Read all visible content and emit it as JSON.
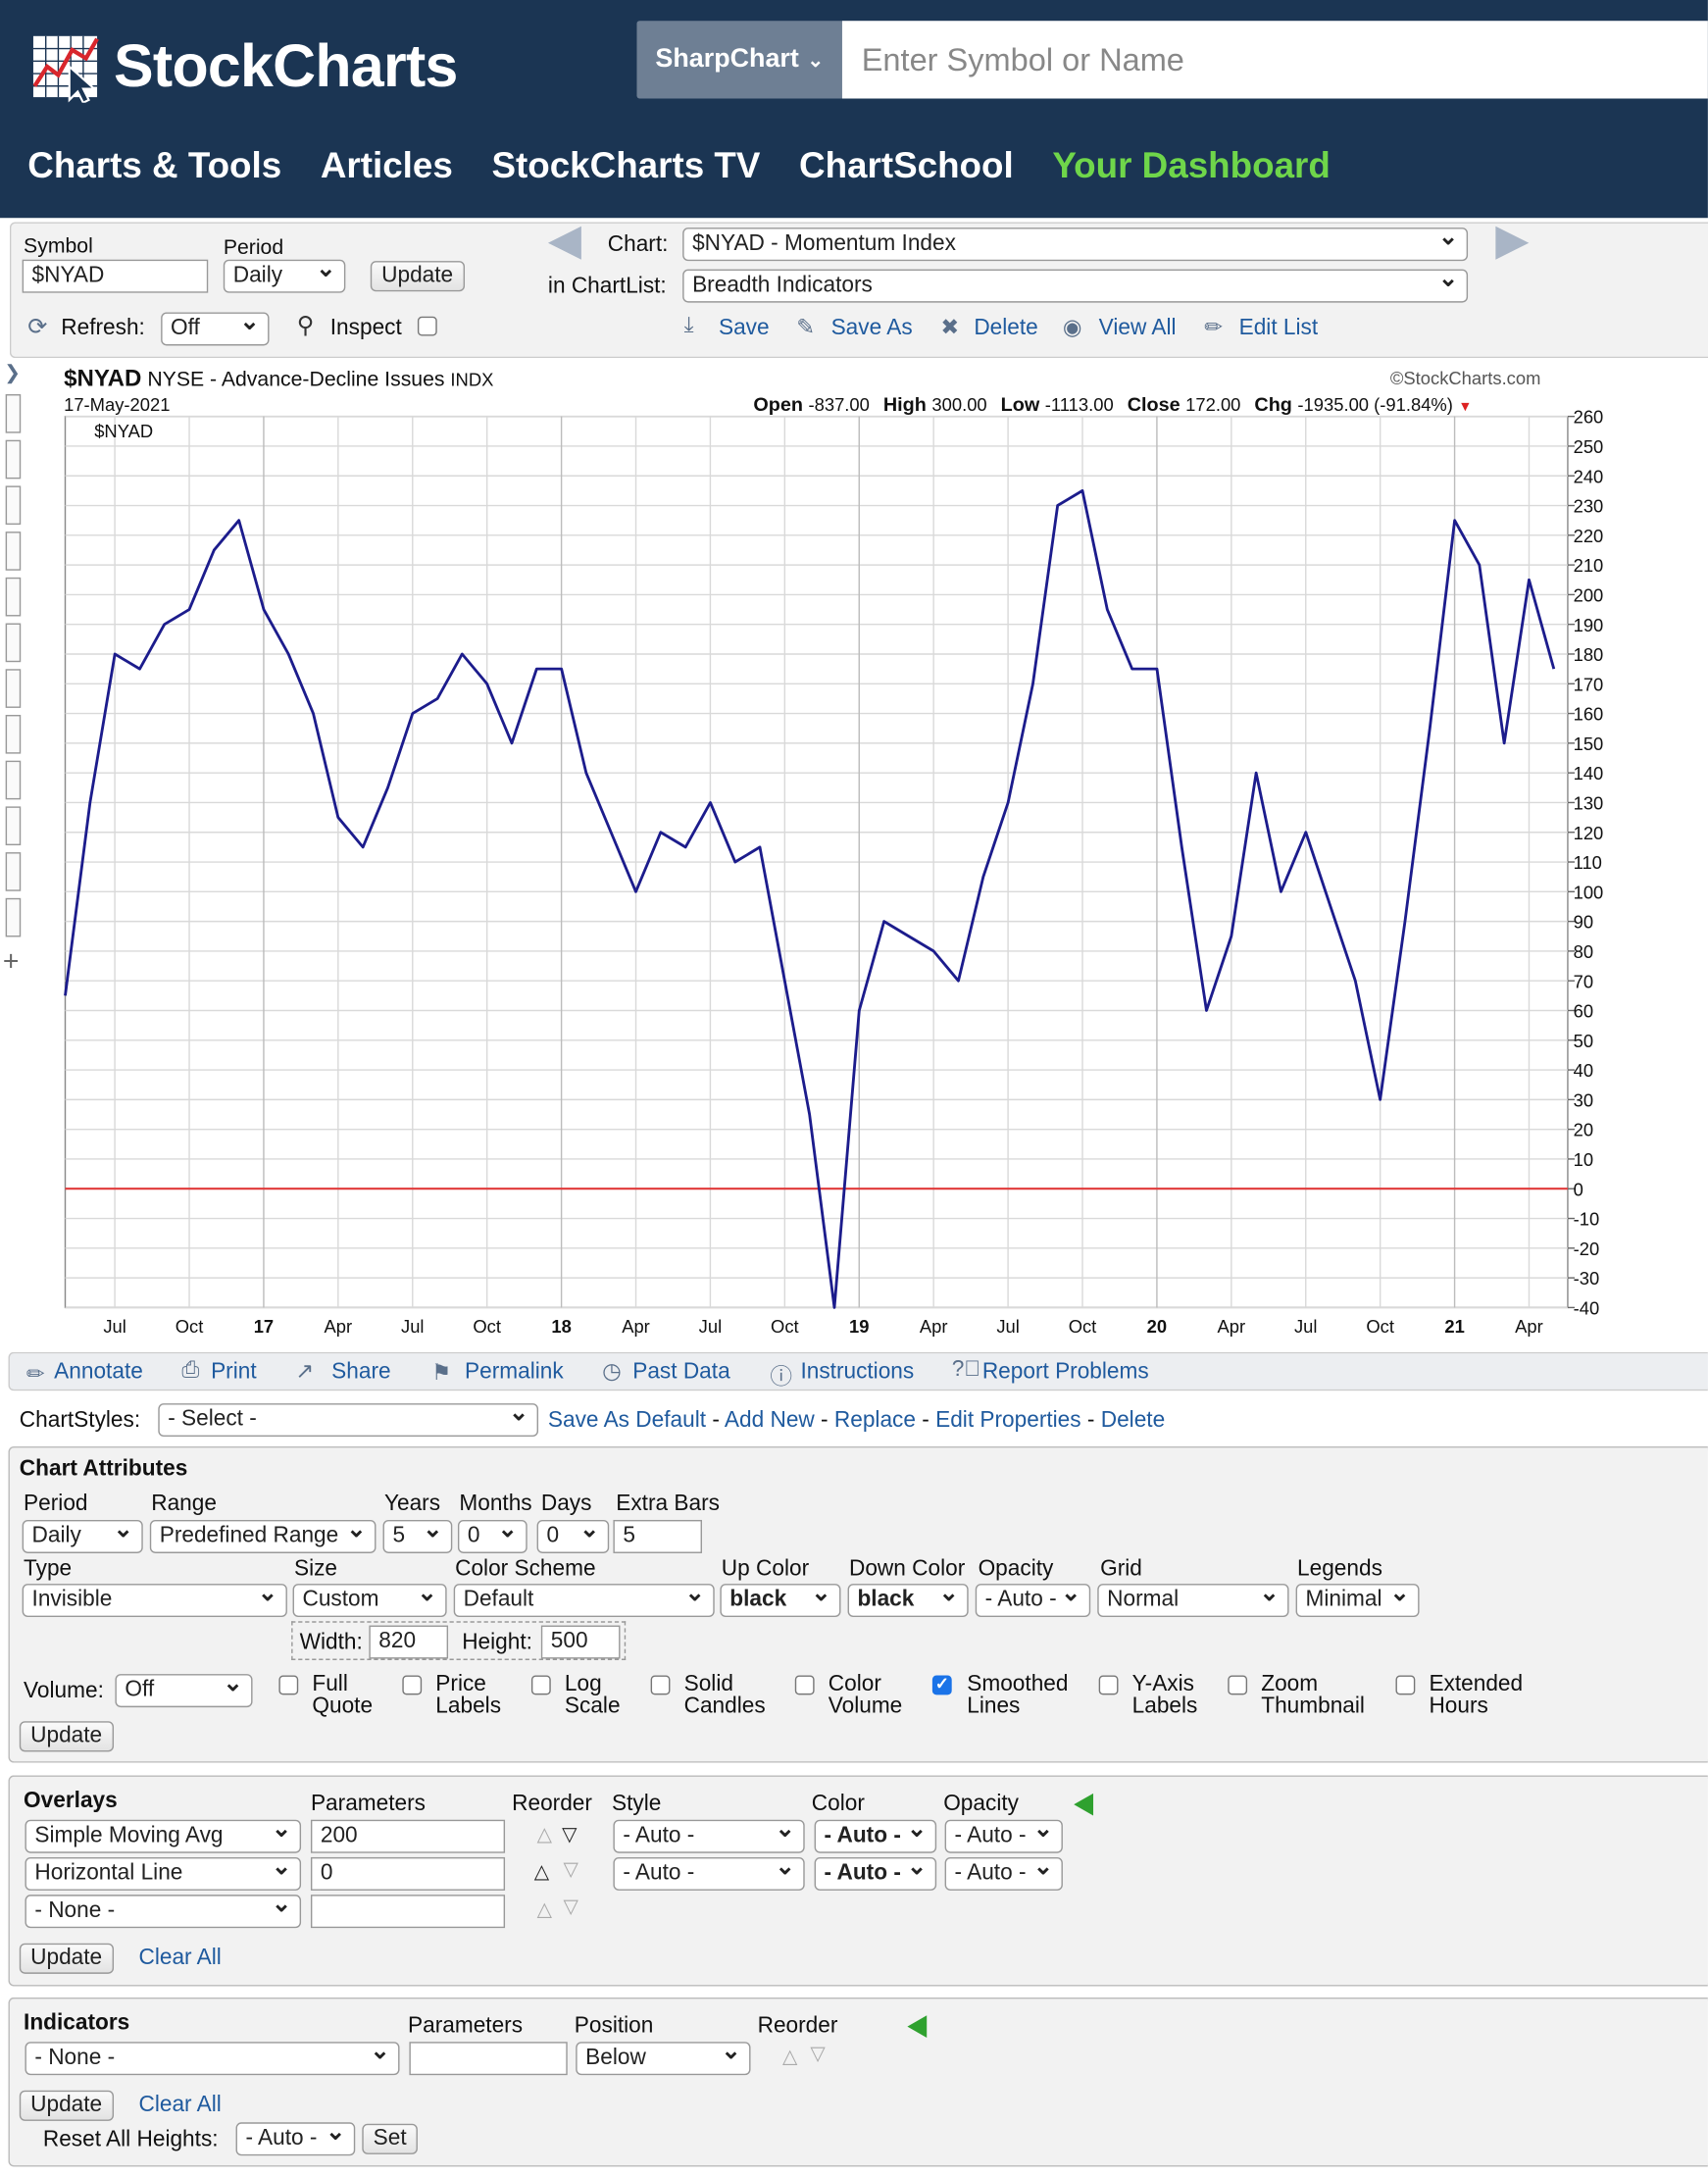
{
  "header": {
    "logo_text": "StockCharts",
    "sharpchart_label": "SharpChart",
    "search_placeholder": "Enter Symbol or Name",
    "nav": [
      "Charts & Tools",
      "Articles",
      "StockCharts TV",
      "ChartSchool",
      "Your Dashboard"
    ]
  },
  "controls": {
    "symbol_label": "Symbol",
    "symbol_value": "$NYAD",
    "period_label": "Period",
    "period_value": "Daily",
    "update_label": "Update",
    "refresh_label": "Refresh:",
    "refresh_value": "Off",
    "inspect_label": "Inspect",
    "chart_label": "Chart:",
    "chart_value": "$NYAD - Momentum Index",
    "chartlist_label": "in ChartList:",
    "chartlist_value": "Breadth Indicators",
    "actions": [
      "Save",
      "Save As",
      "Delete",
      "View All",
      "Edit List"
    ]
  },
  "chart": {
    "symbol": "$NYAD",
    "description": "NYSE - Advance-Decline Issues",
    "exchange": "INDX",
    "date": "17-May-2021",
    "watermark": "©StockCharts.com",
    "panel_label": "$NYAD",
    "ohlc": {
      "open_label": "Open",
      "open": "-837.00",
      "high_label": "High",
      "high": "300.00",
      "low_label": "Low",
      "low": "-1113.00",
      "close_label": "Close",
      "close": "172.00",
      "chg_label": "Chg",
      "chg": "-1935.00 (-91.84%)"
    }
  },
  "chart_data": {
    "type": "line",
    "title": "$NYAD NYSE - Advance-Decline Issues INDX",
    "xlabel": "",
    "ylabel": "",
    "ylim": [
      -40,
      260
    ],
    "y_ticks": [
      260,
      250,
      240,
      230,
      220,
      210,
      200,
      190,
      180,
      170,
      160,
      150,
      140,
      130,
      120,
      110,
      100,
      90,
      80,
      70,
      60,
      50,
      40,
      30,
      20,
      10,
      0,
      -10,
      -20,
      -30,
      -40
    ],
    "x_ticks": [
      "Jul",
      "Oct",
      "17",
      "Apr",
      "Jul",
      "Oct",
      "18",
      "Apr",
      "Jul",
      "Oct",
      "19",
      "Apr",
      "Jul",
      "Oct",
      "20",
      "Apr",
      "Jul",
      "Oct",
      "21",
      "Apr"
    ],
    "grid": true,
    "reference_line": {
      "y": 0,
      "color": "#e03a3a"
    },
    "series": [
      {
        "color": "#1c1c8c",
        "x": [
          "2016-05",
          "2016-06",
          "2016-07",
          "2016-08",
          "2016-09",
          "2016-10",
          "2016-11",
          "2016-12",
          "2017-01",
          "2017-02",
          "2017-03",
          "2017-04",
          "2017-05",
          "2017-06",
          "2017-07",
          "2017-08",
          "2017-09",
          "2017-10",
          "2017-11",
          "2017-12",
          "2018-01",
          "2018-02",
          "2018-03",
          "2018-04",
          "2018-05",
          "2018-06",
          "2018-07",
          "2018-08",
          "2018-09",
          "2018-10",
          "2018-11",
          "2018-12",
          "2019-01",
          "2019-02",
          "2019-03",
          "2019-04",
          "2019-05",
          "2019-06",
          "2019-07",
          "2019-08",
          "2019-09",
          "2019-10",
          "2019-11",
          "2019-12",
          "2020-01",
          "2020-02",
          "2020-03",
          "2020-04",
          "2020-05",
          "2020-06",
          "2020-07",
          "2020-08",
          "2020-09",
          "2020-10",
          "2020-11",
          "2020-12",
          "2021-01",
          "2021-02",
          "2021-03",
          "2021-04",
          "2021-05"
        ],
        "values": [
          65,
          130,
          180,
          175,
          190,
          195,
          215,
          225,
          195,
          180,
          160,
          125,
          115,
          135,
          160,
          165,
          180,
          170,
          150,
          175,
          175,
          140,
          120,
          100,
          120,
          115,
          130,
          110,
          115,
          70,
          25,
          -40,
          60,
          90,
          85,
          80,
          70,
          105,
          130,
          170,
          230,
          235,
          195,
          175,
          175,
          115,
          60,
          85,
          140,
          100,
          120,
          95,
          70,
          30,
          90,
          155,
          225,
          210,
          150,
          205,
          175
        ]
      }
    ]
  },
  "toolbar": {
    "items": [
      "Annotate",
      "Print",
      "Share",
      "Permalink",
      "Past Data",
      "Instructions",
      "Report Problems"
    ]
  },
  "chartstyles": {
    "label": "ChartStyles:",
    "select_value": "- Select -",
    "links": [
      "Save As Default",
      "Add New",
      "Replace",
      "Edit Properties",
      "Delete"
    ],
    "sep": "-"
  },
  "attributes": {
    "title": "Chart Attributes",
    "period_label": "Period",
    "period_value": "Daily",
    "range_label": "Range",
    "range_value": "Predefined Range",
    "years_label": "Years",
    "years_value": "5",
    "months_label": "Months",
    "months_value": "0",
    "days_label": "Days",
    "days_value": "0",
    "extra_label": "Extra Bars",
    "extra_value": "5",
    "type_label": "Type",
    "type_value": "Invisible",
    "size_label": "Size",
    "size_value": "Custom",
    "scheme_label": "Color Scheme",
    "scheme_value": "Default",
    "up_label": "Up Color",
    "up_value": "black",
    "down_label": "Down Color",
    "down_value": "black",
    "opacity_label": "Opacity",
    "opacity_value": "- Auto -",
    "grid_label": "Grid",
    "grid_value": "Normal",
    "legends_label": "Legends",
    "legends_value": "Minimal",
    "width_label": "Width:",
    "width_value": "820",
    "height_label": "Height:",
    "height_value": "500",
    "volume_label": "Volume:",
    "volume_value": "Off",
    "checkboxes": [
      {
        "l1": "Full",
        "l2": "Quote",
        "checked": false
      },
      {
        "l1": "Price",
        "l2": "Labels",
        "checked": false
      },
      {
        "l1": "Log",
        "l2": "Scale",
        "checked": false
      },
      {
        "l1": "Solid",
        "l2": "Candles",
        "checked": false
      },
      {
        "l1": "Color",
        "l2": "Volume",
        "checked": false
      },
      {
        "l1": "Smoothed",
        "l2": "Lines",
        "checked": true
      },
      {
        "l1": "Y-Axis",
        "l2": "Labels",
        "checked": false
      },
      {
        "l1": "Zoom",
        "l2": "Thumbnail",
        "checked": false
      },
      {
        "l1": "Extended",
        "l2": "Hours",
        "checked": false
      }
    ],
    "update_label": "Update"
  },
  "overlays": {
    "title": "Overlays",
    "col_params": "Parameters",
    "col_reorder": "Reorder",
    "col_style": "Style",
    "col_color": "Color",
    "col_opacity": "Opacity",
    "rows": [
      {
        "type": "Simple Moving Avg",
        "params": "200",
        "style": "- Auto -",
        "color": "- Auto -",
        "opacity": "- Auto -"
      },
      {
        "type": "Horizontal Line",
        "params": "0",
        "style": "- Auto -",
        "color": "- Auto -",
        "opacity": "- Auto -"
      },
      {
        "type": "- None -",
        "params": ""
      }
    ],
    "update_label": "Update",
    "clear_label": "Clear All"
  },
  "indicators": {
    "title": "Indicators",
    "col_params": "Parameters",
    "col_position": "Position",
    "col_reorder": "Reorder",
    "type_value": "- None -",
    "params_value": "",
    "position_value": "Below",
    "update_label": "Update",
    "clear_label": "Clear All",
    "reset_label": "Reset All Heights:",
    "reset_value": "- Auto -",
    "set_label": "Set"
  }
}
